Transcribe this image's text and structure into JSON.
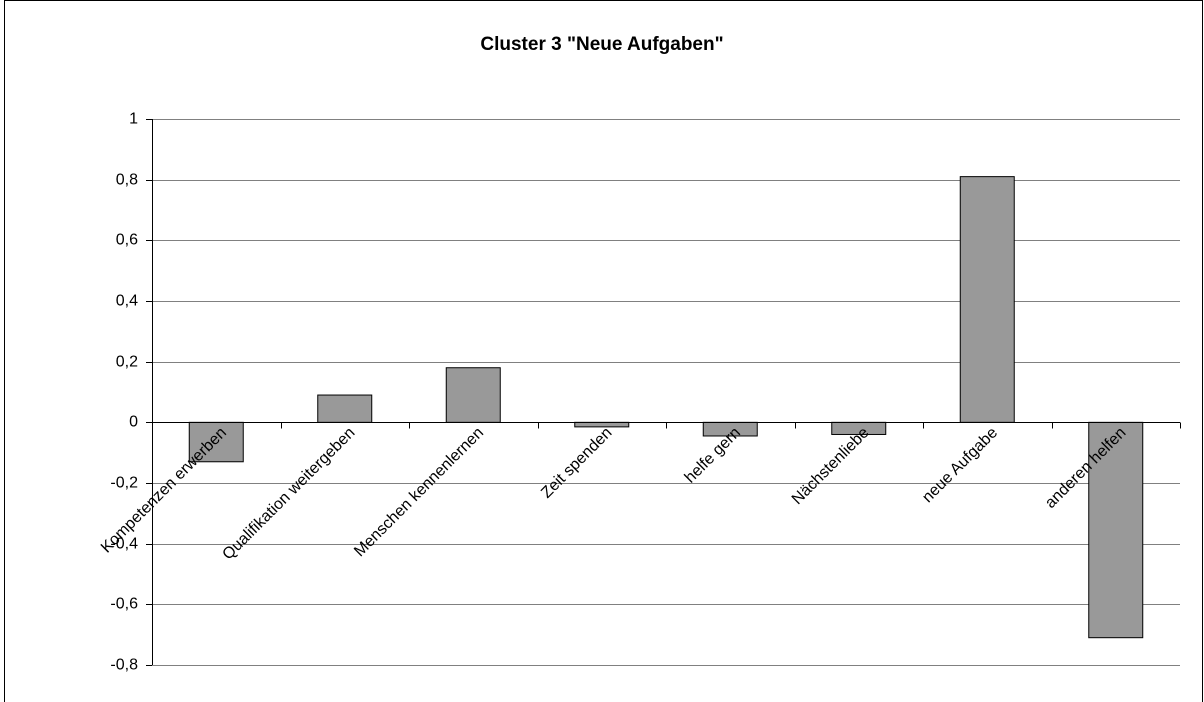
{
  "chart_data": {
    "type": "bar",
    "title": "Cluster 3 \"Neue Aufgaben\"",
    "categories": [
      "Kompetenzen erwerben",
      "Qualifikation weitergeben",
      "Menschen kennenlernen",
      "Zeit spenden",
      "helfe gern",
      "Nächstenliebe",
      "neue Aufgabe",
      "anderen helfen"
    ],
    "values": [
      -0.13,
      0.09,
      0.18,
      -0.015,
      -0.045,
      -0.04,
      0.81,
      -0.71
    ],
    "color": "#999999",
    "ylim": [
      -0.8,
      1
    ],
    "yticks": [
      {
        "value": -0.8,
        "label": "-0,8"
      },
      {
        "value": -0.6,
        "label": "-0,6"
      },
      {
        "value": -0.4,
        "label": "-0,4"
      },
      {
        "value": -0.2,
        "label": "-0,2"
      },
      0,
      {
        "value": 0.2,
        "label": "0,2"
      },
      {
        "value": 0.4,
        "label": "0,4"
      },
      {
        "value": 0.6,
        "label": "0,6"
      },
      {
        "value": 0.8,
        "label": "0,8"
      },
      1
    ],
    "grid": true
  }
}
